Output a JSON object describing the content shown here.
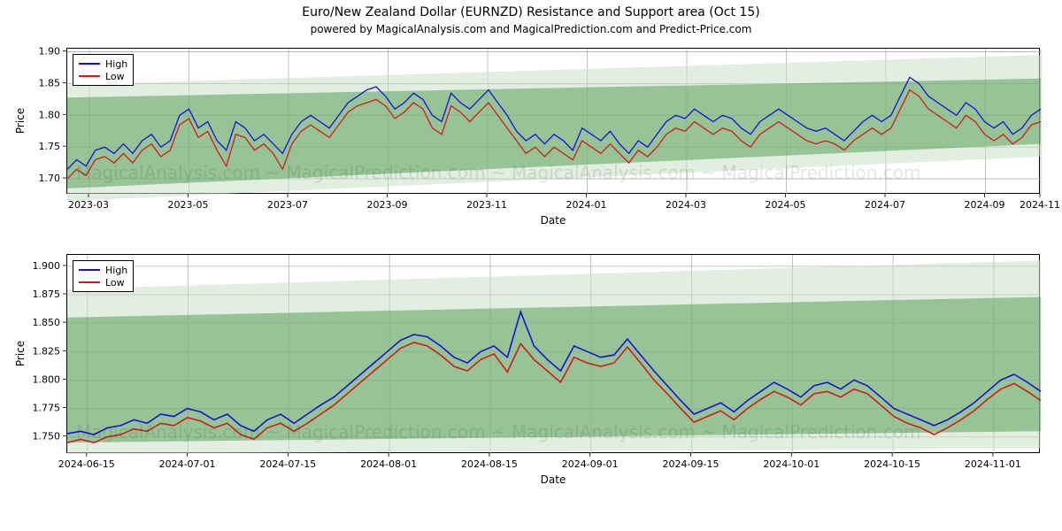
{
  "title": "Euro/New Zealand Dollar (EURNZD) Resistance and Support area (Oct 15)",
  "subtitle": "powered by MagicalAnalysis.com and MagicalPrediction.com and Predict-Price.com",
  "watermark": "MagicalAnalysis.com ~ MagicalPrediction.com ~ MagicalAnalysis.com ~ MagicalPrediction.com",
  "legend": {
    "high": "High",
    "low": "Low"
  },
  "colors": {
    "high": "#1910d8",
    "low": "#d11b1b",
    "band_fill": "#5aa35a",
    "band_fill_light": "#c8e0c8",
    "grid": "#b0b0b0",
    "axis": "#000000",
    "background": "#ffffff"
  },
  "chart1": {
    "type": "line+band",
    "xlabel": "Date",
    "ylabel": "Price",
    "ylim": [
      1.675,
      1.905
    ],
    "yticks": [
      1.7,
      1.75,
      1.8,
      1.85,
      1.9
    ],
    "ytick_labels": [
      "1.70",
      "1.75",
      "1.80",
      "1.85",
      "1.90"
    ],
    "xlim": [
      0,
      440
    ],
    "xticks": [
      10,
      55,
      100,
      145,
      190,
      235,
      280,
      325,
      370,
      415,
      440
    ],
    "xtick_labels": [
      "2023-03",
      "2023-05",
      "2023-07",
      "2023-09",
      "2023-11",
      "2024-01",
      "2024-03",
      "2024-05",
      "2024-07",
      "2024-09",
      "2024-11"
    ],
    "band_main": {
      "y0_start": 1.685,
      "y0_end": 1.755,
      "y1_start": 1.828,
      "y1_end": 1.858
    },
    "band_light": {
      "y0_start": 1.665,
      "y0_end": 1.735,
      "y1_start": 1.848,
      "y1_end": 1.895
    },
    "high": [
      1.715,
      1.73,
      1.72,
      1.745,
      1.75,
      1.74,
      1.755,
      1.74,
      1.76,
      1.77,
      1.75,
      1.76,
      1.8,
      1.81,
      1.78,
      1.79,
      1.76,
      1.745,
      1.79,
      1.78,
      1.76,
      1.77,
      1.755,
      1.74,
      1.77,
      1.79,
      1.8,
      1.79,
      1.78,
      1.8,
      1.82,
      1.83,
      1.84,
      1.845,
      1.83,
      1.81,
      1.82,
      1.835,
      1.825,
      1.8,
      1.79,
      1.835,
      1.82,
      1.81,
      1.825,
      1.84,
      1.82,
      1.8,
      1.775,
      1.76,
      1.77,
      1.755,
      1.77,
      1.76,
      1.745,
      1.78,
      1.77,
      1.76,
      1.775,
      1.755,
      1.74,
      1.76,
      1.75,
      1.77,
      1.79,
      1.8,
      1.795,
      1.81,
      1.8,
      1.79,
      1.8,
      1.795,
      1.78,
      1.77,
      1.79,
      1.8,
      1.81,
      1.8,
      1.79,
      1.78,
      1.775,
      1.78,
      1.77,
      1.76,
      1.775,
      1.79,
      1.8,
      1.79,
      1.8,
      1.83,
      1.86,
      1.85,
      1.83,
      1.82,
      1.81,
      1.8,
      1.82,
      1.81,
      1.79,
      1.78,
      1.79,
      1.77,
      1.78,
      1.8,
      1.81
    ],
    "low": [
      1.7,
      1.715,
      1.705,
      1.73,
      1.735,
      1.725,
      1.74,
      1.725,
      1.745,
      1.755,
      1.735,
      1.745,
      1.785,
      1.795,
      1.765,
      1.775,
      1.745,
      1.72,
      1.77,
      1.765,
      1.745,
      1.755,
      1.74,
      1.715,
      1.755,
      1.775,
      1.785,
      1.775,
      1.765,
      1.785,
      1.805,
      1.815,
      1.82,
      1.825,
      1.815,
      1.795,
      1.805,
      1.82,
      1.81,
      1.78,
      1.77,
      1.815,
      1.805,
      1.79,
      1.805,
      1.82,
      1.8,
      1.78,
      1.76,
      1.74,
      1.75,
      1.735,
      1.75,
      1.74,
      1.73,
      1.76,
      1.75,
      1.74,
      1.755,
      1.74,
      1.725,
      1.745,
      1.735,
      1.75,
      1.77,
      1.78,
      1.775,
      1.79,
      1.78,
      1.77,
      1.78,
      1.775,
      1.76,
      1.75,
      1.77,
      1.78,
      1.79,
      1.78,
      1.77,
      1.76,
      1.755,
      1.76,
      1.755,
      1.745,
      1.76,
      1.77,
      1.78,
      1.77,
      1.78,
      1.81,
      1.84,
      1.83,
      1.81,
      1.8,
      1.79,
      1.78,
      1.8,
      1.79,
      1.77,
      1.76,
      1.77,
      1.755,
      1.765,
      1.785,
      1.79
    ],
    "line_width": 1.3,
    "label_fontsize": 12,
    "tick_fontsize": 11
  },
  "chart2": {
    "type": "line+band",
    "xlabel": "Date",
    "ylabel": "Price",
    "ylim": [
      1.735,
      1.91
    ],
    "yticks": [
      1.75,
      1.775,
      1.8,
      1.825,
      1.85,
      1.875,
      1.9
    ],
    "ytick_labels": [
      "1.750",
      "1.775",
      "1.800",
      "1.825",
      "1.850",
      "1.875",
      "1.900"
    ],
    "xlim": [
      0,
      145
    ],
    "xticks": [
      3,
      18,
      33,
      48,
      63,
      78,
      93,
      108,
      123,
      138
    ],
    "xtick_labels": [
      "2024-06-15",
      "2024-07-01",
      "2024-07-15",
      "2024-08-01",
      "2024-08-15",
      "2024-09-01",
      "2024-09-15",
      "2024-10-01",
      "2024-10-15",
      "2024-11-01"
    ],
    "band_main": {
      "y0_start": 1.745,
      "y0_end": 1.755,
      "y1_start": 1.855,
      "y1_end": 1.873
    },
    "band_light": {
      "y0_start": 1.735,
      "y0_end": 1.74,
      "y1_start": 1.88,
      "y1_end": 1.905
    },
    "high": [
      1.753,
      1.755,
      1.752,
      1.758,
      1.76,
      1.765,
      1.762,
      1.77,
      1.768,
      1.775,
      1.772,
      1.765,
      1.77,
      1.76,
      1.755,
      1.765,
      1.77,
      1.762,
      1.77,
      1.778,
      1.785,
      1.795,
      1.805,
      1.815,
      1.825,
      1.835,
      1.84,
      1.838,
      1.83,
      1.82,
      1.815,
      1.825,
      1.83,
      1.82,
      1.86,
      1.83,
      1.818,
      1.808,
      1.83,
      1.825,
      1.82,
      1.822,
      1.836,
      1.822,
      1.808,
      1.795,
      1.782,
      1.77,
      1.775,
      1.78,
      1.772,
      1.782,
      1.79,
      1.798,
      1.792,
      1.785,
      1.795,
      1.798,
      1.792,
      1.8,
      1.795,
      1.785,
      1.775,
      1.77,
      1.765,
      1.76,
      1.765,
      1.772,
      1.78,
      1.79,
      1.8,
      1.805,
      1.798,
      1.79
    ],
    "low": [
      1.745,
      1.748,
      1.745,
      1.75,
      1.752,
      1.757,
      1.755,
      1.762,
      1.76,
      1.767,
      1.764,
      1.758,
      1.762,
      1.752,
      1.748,
      1.758,
      1.762,
      1.755,
      1.762,
      1.77,
      1.778,
      1.788,
      1.798,
      1.808,
      1.818,
      1.828,
      1.833,
      1.83,
      1.822,
      1.812,
      1.808,
      1.818,
      1.823,
      1.807,
      1.832,
      1.818,
      1.808,
      1.798,
      1.82,
      1.815,
      1.812,
      1.815,
      1.829,
      1.815,
      1.8,
      1.788,
      1.775,
      1.763,
      1.768,
      1.773,
      1.765,
      1.775,
      1.783,
      1.79,
      1.785,
      1.778,
      1.788,
      1.79,
      1.785,
      1.792,
      1.788,
      1.778,
      1.768,
      1.762,
      1.758,
      1.752,
      1.758,
      1.765,
      1.773,
      1.783,
      1.792,
      1.797,
      1.79,
      1.782
    ],
    "line_width": 1.6,
    "label_fontsize": 12,
    "tick_fontsize": 11
  }
}
